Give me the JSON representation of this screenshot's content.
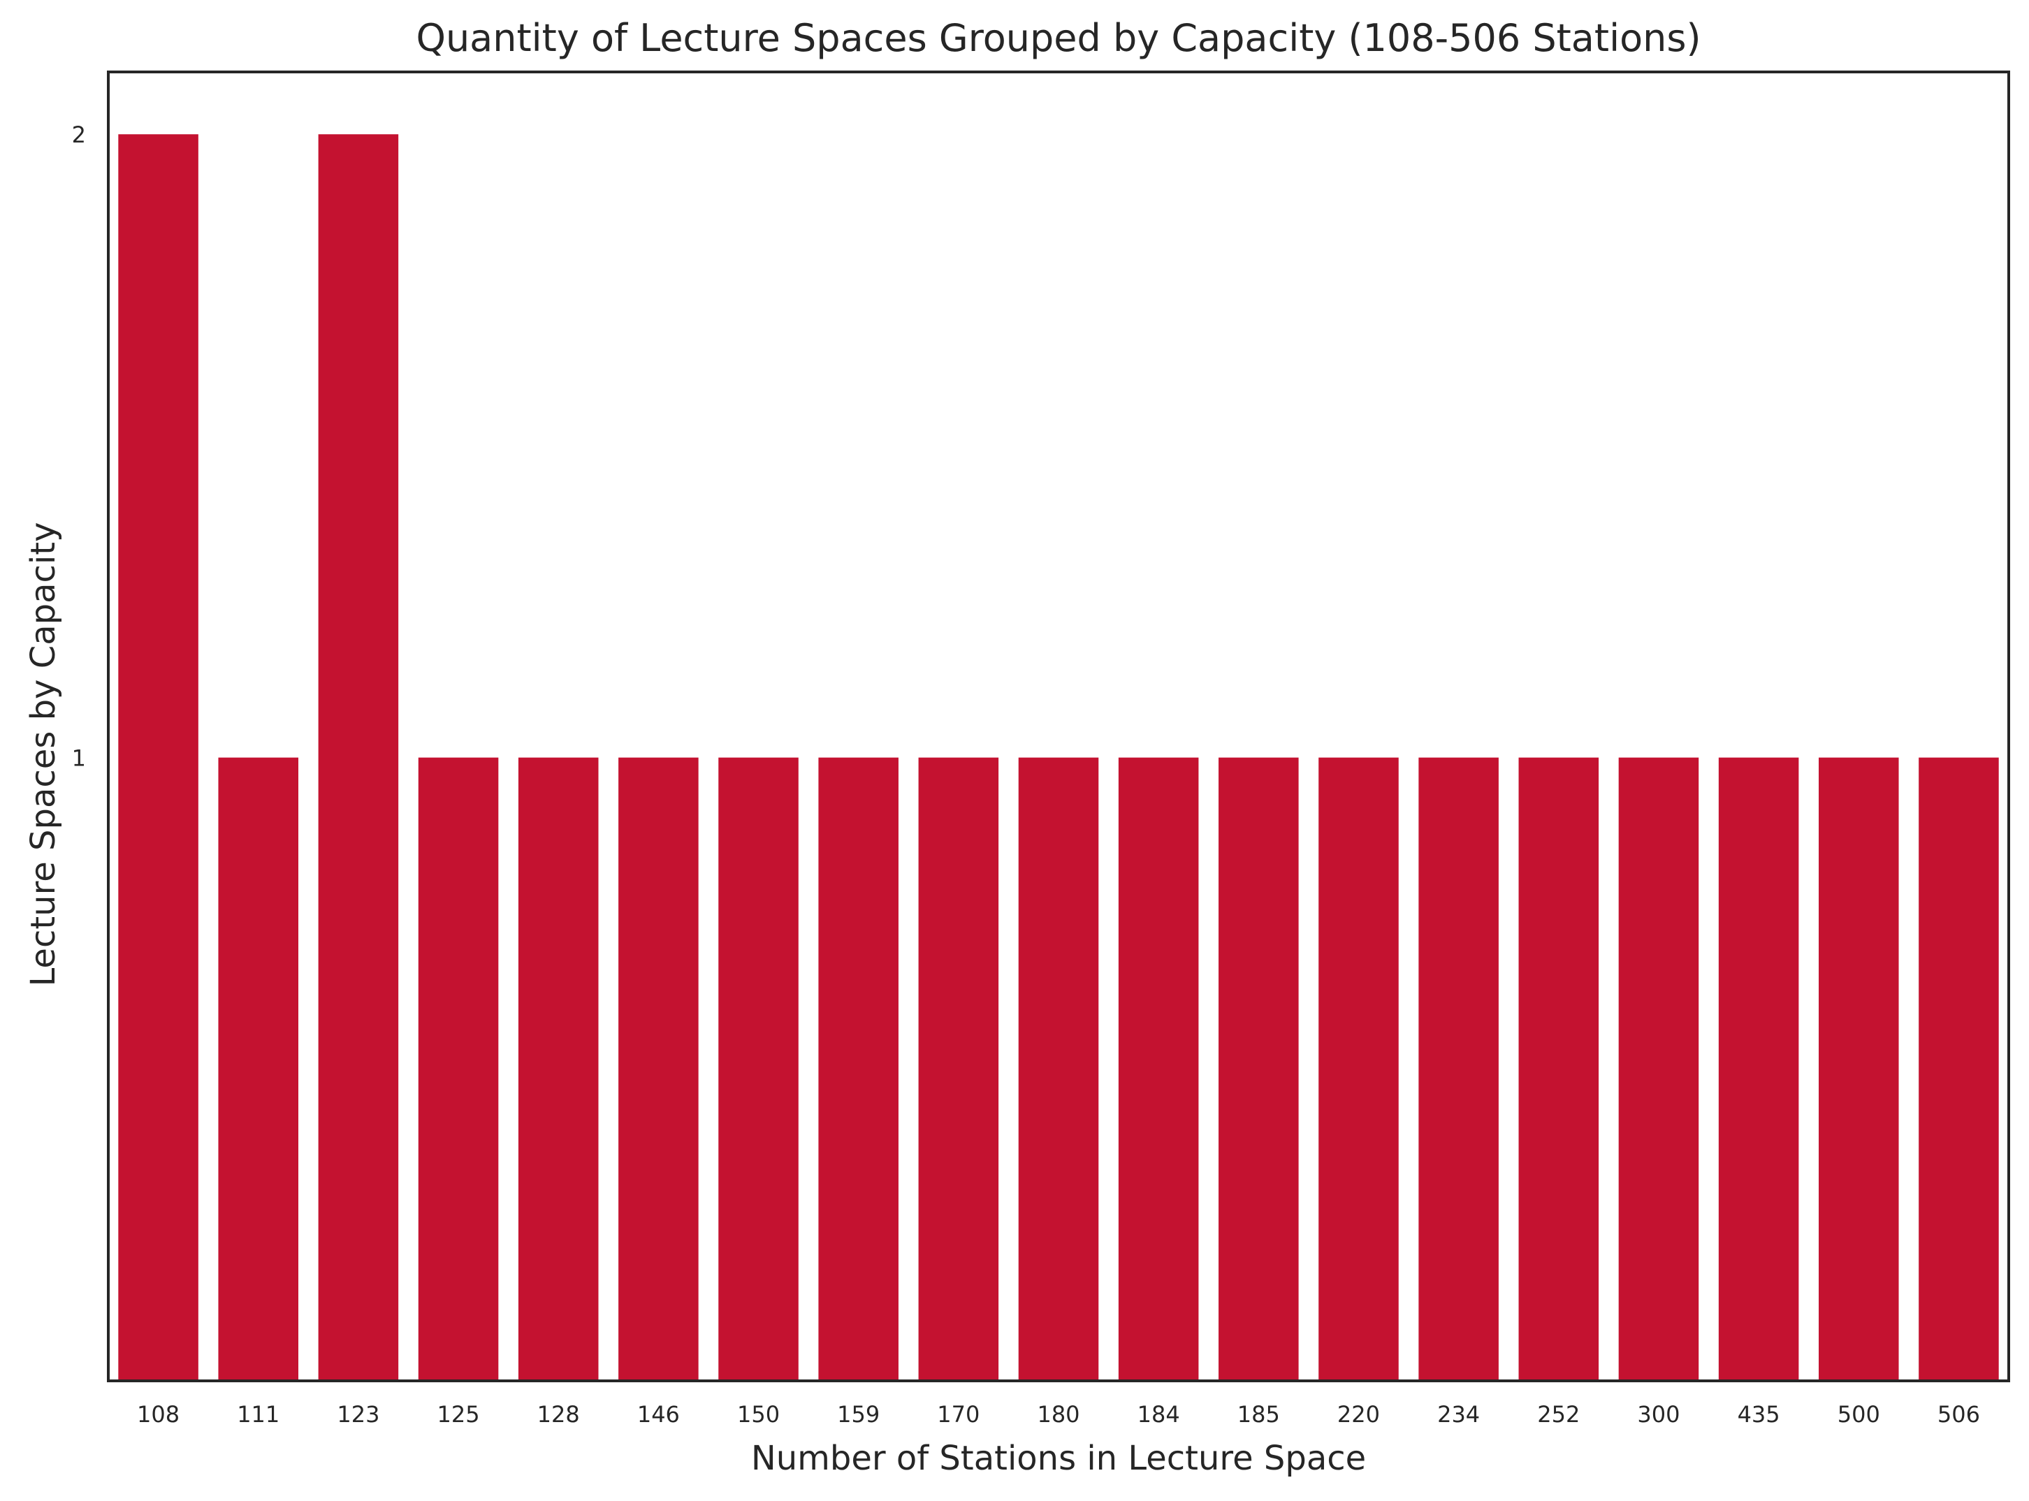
{
  "chart_data": {
    "type": "bar",
    "title": "Quantity of Lecture Spaces Grouped by Capacity (108-506 Stations)",
    "xlabel": "Number of Stations in Lecture Space",
    "ylabel": "Lecture Spaces by Capacity",
    "categories": [
      "108",
      "111",
      "123",
      "125",
      "128",
      "146",
      "150",
      "159",
      "170",
      "180",
      "184",
      "185",
      "220",
      "234",
      "252",
      "300",
      "435",
      "500",
      "506"
    ],
    "values": [
      2,
      1,
      2,
      1,
      1,
      1,
      1,
      1,
      1,
      1,
      1,
      1,
      1,
      1,
      1,
      1,
      1,
      1,
      1
    ],
    "yticks": [
      1,
      2
    ],
    "ylim": [
      0,
      2.1
    ],
    "grid": false,
    "legend": "none",
    "colors": {
      "bar": "#c41230",
      "frame": "#262626",
      "background": "#ffffff"
    }
  }
}
